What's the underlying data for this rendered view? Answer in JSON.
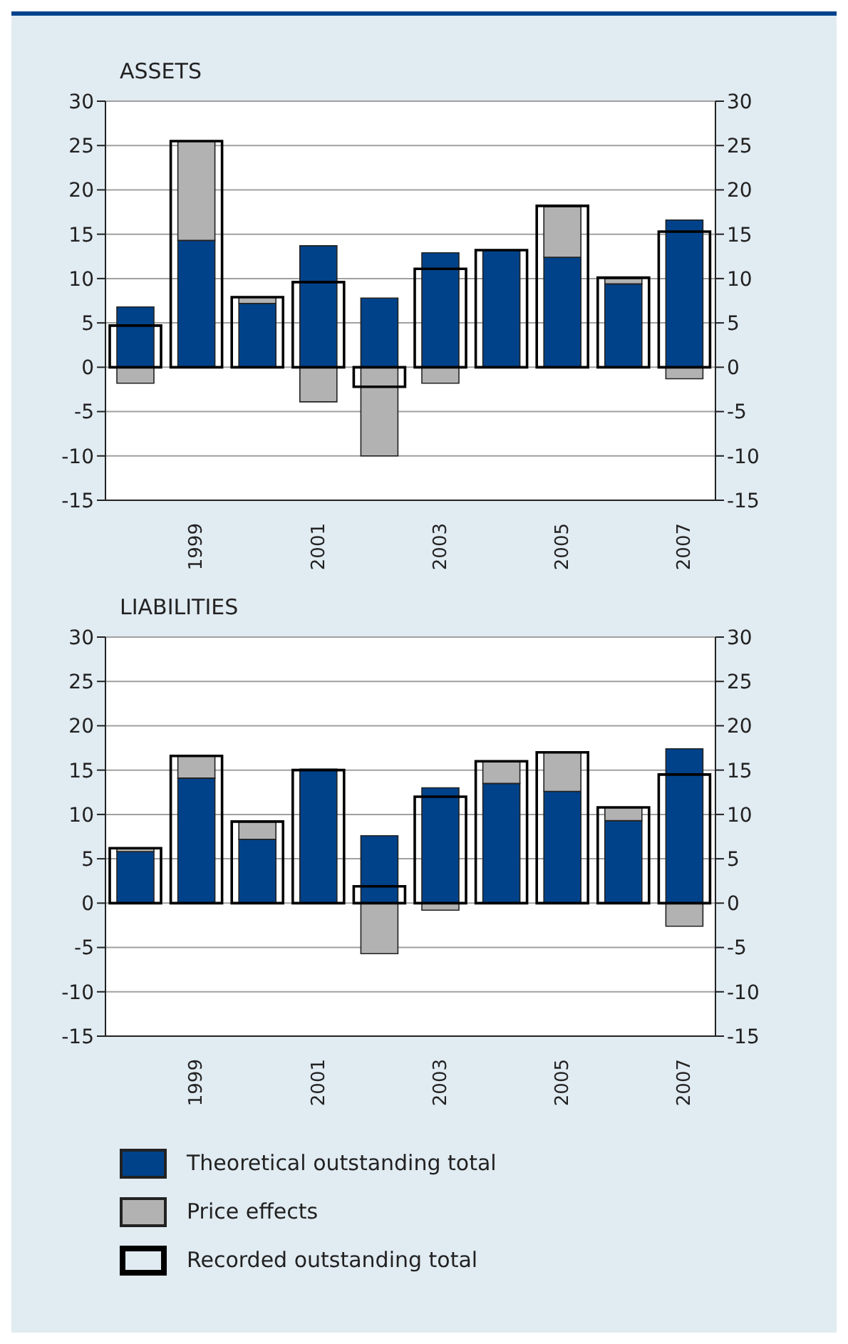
{
  "chart_data": [
    {
      "type": "bar",
      "title": "ASSETS",
      "categories": [
        null,
        "1999",
        null,
        "2001",
        null,
        "2003",
        null,
        "2005",
        null,
        "2007"
      ],
      "stacked": true,
      "series": [
        {
          "color": "#00428a",
          "values": [
            6.8,
            14.3,
            7.2,
            13.7,
            7.8,
            12.9,
            13.2,
            12.4,
            9.4,
            16.6
          ]
        },
        {
          "color": "#b2b2b2",
          "values": [
            -1.8,
            11.2,
            0.7,
            -3.9,
            -10,
            -1.8,
            0,
            5.7,
            0.6,
            -1.3
          ]
        },
        {
          "color": "#000000",
          "axis": "y2",
          "values": [
            4.7,
            25.5,
            7.9,
            9.6,
            -2.2,
            11.1,
            13.2,
            18.2,
            10.1,
            15.3
          ]
        }
      ],
      "ylim": [
        -15,
        30
      ],
      "yticks": [
        -15,
        -10,
        -5,
        0,
        5,
        10,
        15,
        20,
        25,
        30
      ],
      "y2lim": [
        -15,
        30
      ],
      "y2ticks": [
        -15,
        -10,
        -5,
        0,
        5,
        10,
        15,
        20,
        25,
        30
      ],
      "grid": "y",
      "legend": false
    },
    {
      "type": "bar",
      "title": "LIABILITIES",
      "categories": [
        null,
        "1999",
        null,
        "2001",
        null,
        "2003",
        null,
        "2005",
        null,
        "2007"
      ],
      "stacked": true,
      "series": [
        {
          "name": "Theoretical outstanding total",
          "color": "#00428a",
          "values": [
            5.8,
            14.1,
            7.2,
            15.1,
            7.6,
            13.0,
            13.5,
            12.6,
            9.3,
            17.4
          ]
        },
        {
          "name": "Price effects",
          "color": "#b2b2b2",
          "values": [
            0.4,
            2.5,
            2.0,
            null,
            -5.7,
            -0.8,
            2.5,
            4.4,
            1.5,
            -2.6
          ]
        },
        {
          "name": "Recorded outstanding  total",
          "color": "#000000",
          "axis": "y2",
          "values": [
            6.2,
            16.6,
            9.2,
            15.0,
            1.9,
            12.0,
            16.0,
            17.0,
            10.8,
            14.5
          ]
        }
      ],
      "ylim": [
        -15,
        30
      ],
      "yticks": [
        -15,
        -10,
        -5,
        0,
        5,
        10,
        15,
        20,
        25,
        30
      ],
      "y2lim": [
        -15,
        30
      ],
      "y2ticks": [
        -15,
        -10,
        -5,
        0,
        5,
        10,
        15,
        20,
        25,
        30
      ],
      "grid": "y",
      "legend": "bottom"
    }
  ]
}
